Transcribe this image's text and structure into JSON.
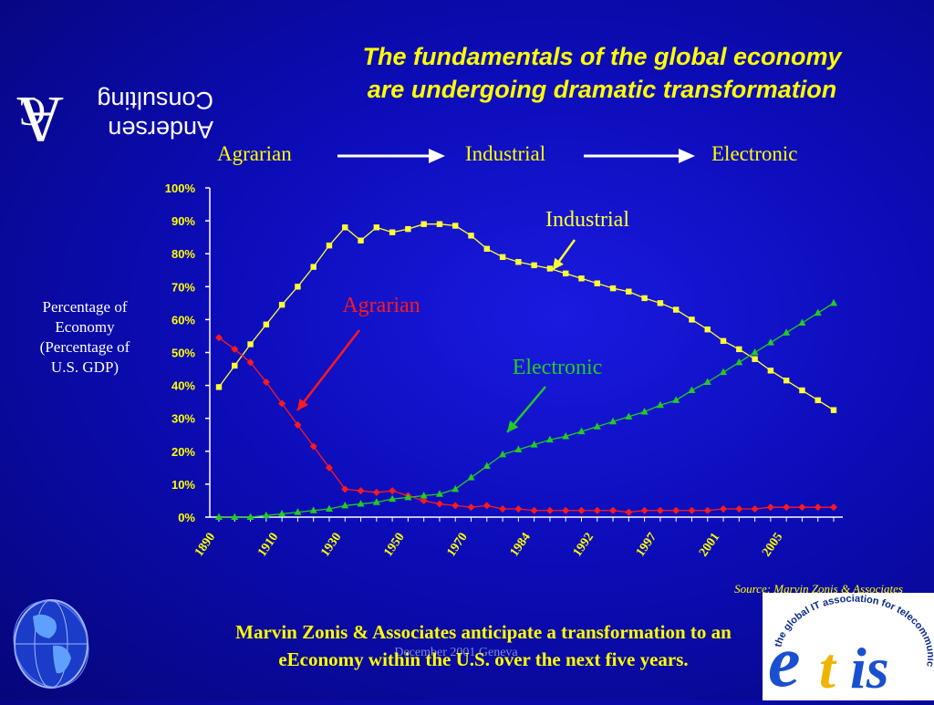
{
  "slide": {
    "title_line1": "The fundamentals of the global economy",
    "title_line2": "are undergoing dramatic transformation",
    "logo": {
      "mark": "AC",
      "line1": "Andersen",
      "line2": "Consulting"
    },
    "stages": [
      "Agrarian",
      "Industrial",
      "Electronic"
    ],
    "ylabel_line1": "Percentage of",
    "ylabel_line2": "Economy",
    "ylabel_line3": "(Percentage of",
    "ylabel_line4": "U.S. GDP)",
    "source": "Source: Marvin Zonis & Associates",
    "bottom_line1": "Marvin Zonis & Associates anticipate a transformation to an",
    "bottom_line2": "eEconomy within the U.S. over the next five years.",
    "footer_note": "December 2001    Geneva",
    "etis_text": "etis",
    "etis_arc": "the global IT association for telecommunications"
  },
  "colors": {
    "title": "#ffff00",
    "agrarian": "#ff1a1a",
    "industrial": "#ffff33",
    "electronic": "#22cc22",
    "axis": "#ffffff",
    "tick_text": "#ffff00"
  },
  "chart_data": {
    "type": "line",
    "ylabel": "Percentage of Economy (Percentage of U.S. GDP)",
    "ylim": [
      0,
      100
    ],
    "y_ticks": [
      "0%",
      "10%",
      "20%",
      "30%",
      "40%",
      "50%",
      "60%",
      "70%",
      "80%",
      "90%",
      "100%"
    ],
    "x_tick_labels": [
      "1890",
      "1910",
      "1930",
      "1950",
      "1970",
      "1984",
      "1992",
      "1997",
      "2001",
      "2005"
    ],
    "x_tick_positions": [
      0,
      4,
      8,
      12,
      16,
      20,
      24,
      28,
      32,
      36
    ],
    "grid": false,
    "legend": "inline labels",
    "annotations": [
      "Industrial",
      "Agrarian",
      "Electronic"
    ],
    "series": [
      {
        "name": "Industrial",
        "values": [
          39.5,
          46,
          52.5,
          58.5,
          64.5,
          70,
          76,
          82.5,
          88,
          84,
          88,
          86.5,
          87.5,
          89,
          89,
          88.5,
          85.5,
          81.5,
          79,
          77.5,
          76.5,
          75.5,
          74,
          72.5,
          71,
          69.5,
          68.5,
          66.5,
          65,
          63,
          60,
          57,
          53.5,
          51,
          48,
          44.5,
          41.5,
          38.5,
          35.5,
          32.5
        ]
      },
      {
        "name": "Agrarian",
        "values": [
          54.5,
          51,
          47,
          41,
          34.5,
          28,
          21.5,
          15,
          8.5,
          8,
          7.5,
          8,
          6.5,
          5,
          4,
          3.5,
          3,
          3.5,
          2.5,
          2.5,
          2,
          2,
          2,
          2,
          2,
          2,
          1.5,
          2,
          2,
          2,
          2,
          2,
          2.5,
          2.5,
          2.5,
          3,
          3,
          3,
          3,
          3
        ]
      },
      {
        "name": "Electronic",
        "values": [
          0,
          0,
          0,
          0.5,
          1,
          1.5,
          2,
          2.5,
          3.5,
          4,
          4.5,
          5.5,
          6,
          6.5,
          7,
          8.5,
          12,
          15.5,
          19,
          20.5,
          22,
          23.5,
          24.5,
          26,
          27.5,
          29,
          30.5,
          32,
          34,
          35.5,
          38.5,
          41,
          44,
          47,
          50,
          53,
          56,
          59,
          62,
          65
        ]
      }
    ]
  }
}
